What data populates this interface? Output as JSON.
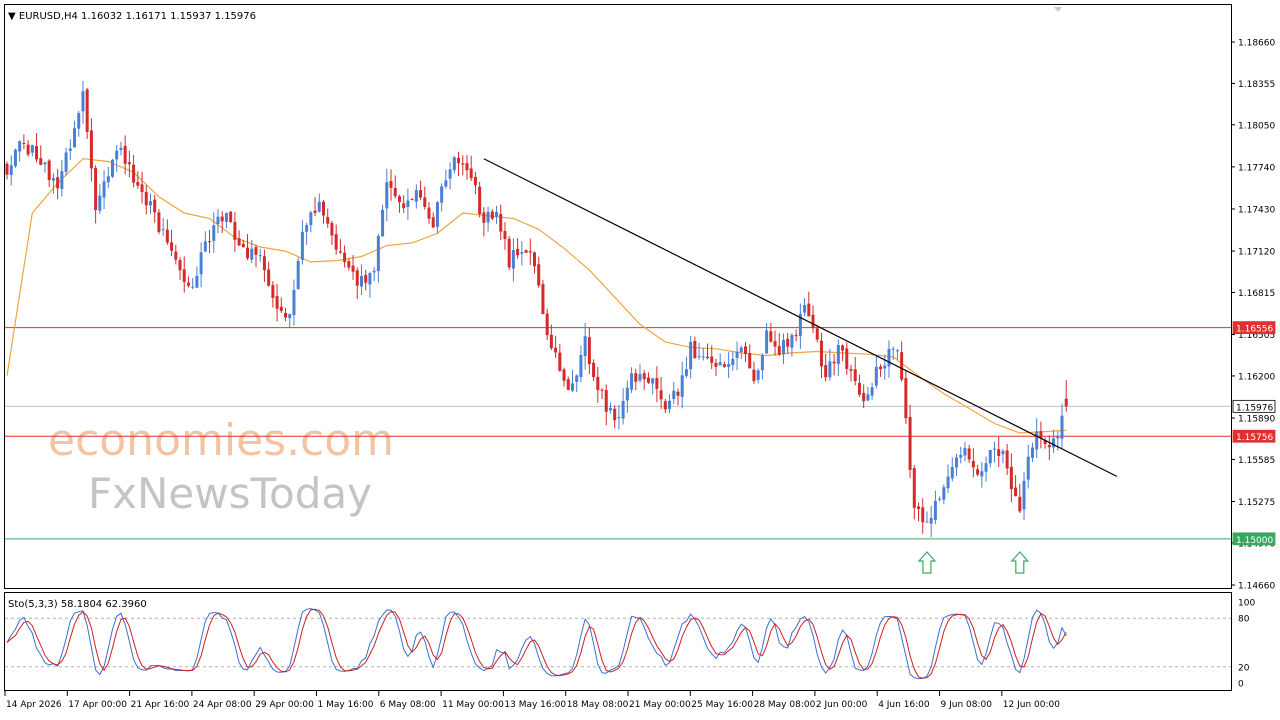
{
  "header": {
    "info": "▼ EURUSD,H4  1.16032 1.16171 1.15937 1.15976"
  },
  "watermark": {
    "line1": "economies.com",
    "line2": "FxNewsToday"
  },
  "indicator": {
    "label": "Sto(5,3,3) 58.1804 62.3960",
    "levels": [
      100,
      80,
      20,
      0
    ],
    "scale_labels": [
      "100",
      "80",
      "20",
      "0"
    ]
  },
  "colors": {
    "bull": "#4a7fd6",
    "bear": "#d42a2a",
    "ma": "#f0a640",
    "resistance": "#e03030",
    "support": "#3aa860",
    "current_price_line": "#c0c0c0",
    "trendline": "#000000",
    "stoch_main": "#3a70d0",
    "stoch_signal": "#d02020",
    "arrow": "#3aa860",
    "watermark_orange": "#f3c4a2",
    "watermark_gray": "#c4c4c4"
  },
  "chart_data": {
    "type": "candlestick",
    "symbol": "EURUSD",
    "timeframe": "H4",
    "ohlc_header": {
      "open": 1.16032,
      "high": 1.16171,
      "low": 1.15937,
      "close": 1.15976
    },
    "ylim": [
      1.1466,
      1.1886
    ],
    "y_ticks": [
      1.1866,
      1.18355,
      1.1805,
      1.1774,
      1.1743,
      1.1712,
      1.16815,
      1.16505,
      1.162,
      1.1589,
      1.15585,
      1.15275,
      1.1497,
      1.1466
    ],
    "x_tick_labels": [
      "14 Apr 2026",
      "17 Apr 00:00",
      "21 Apr 16:00",
      "24 Apr 08:00",
      "29 Apr 00:00",
      "1 May 16:00",
      "6 May 08:00",
      "11 May 00:00",
      "13 May 16:00",
      "18 May 08:00",
      "21 May 00:00",
      "25 May 16:00",
      "28 May 08:00",
      "2 Jun 00:00",
      "4 Jun 16:00",
      "9 Jun 08:00",
      "12 Jun 00:00"
    ],
    "anchors": [
      [
        0,
        1.1765
      ],
      [
        3,
        1.1795
      ],
      [
        8,
        1.1778
      ],
      [
        12,
        1.1758
      ],
      [
        16,
        1.1802
      ],
      [
        18,
        1.1832
      ],
      [
        21,
        1.1738
      ],
      [
        26,
        1.1788
      ],
      [
        31,
        1.1762
      ],
      [
        34,
        1.1744
      ],
      [
        38,
        1.1718
      ],
      [
        43,
        1.1682
      ],
      [
        47,
        1.1714
      ],
      [
        52,
        1.1744
      ],
      [
        55,
        1.1712
      ],
      [
        60,
        1.1708
      ],
      [
        64,
        1.1674
      ],
      [
        67,
        1.1665
      ],
      [
        70,
        1.1726
      ],
      [
        74,
        1.1746
      ],
      [
        79,
        1.1708
      ],
      [
        83,
        1.1686
      ],
      [
        87,
        1.1698
      ],
      [
        90,
        1.1762
      ],
      [
        93,
        1.1748
      ],
      [
        97,
        1.1752
      ],
      [
        101,
        1.1732
      ],
      [
        104,
        1.1768
      ],
      [
        107,
        1.1782
      ],
      [
        110,
        1.1768
      ],
      [
        113,
        1.1732
      ],
      [
        116,
        1.1744
      ],
      [
        119,
        1.1704
      ],
      [
        122,
        1.1714
      ],
      [
        125,
        1.1704
      ],
      [
        128,
        1.1652
      ],
      [
        131,
        1.1622
      ],
      [
        134,
        1.161
      ],
      [
        137,
        1.1645
      ],
      [
        140,
        1.1612
      ],
      [
        143,
        1.1592
      ],
      [
        145,
        1.1588
      ],
      [
        148,
        1.1618
      ],
      [
        151,
        1.1622
      ],
      [
        154,
        1.1615
      ],
      [
        156,
        1.1598
      ],
      [
        159,
        1.1608
      ],
      [
        162,
        1.164
      ],
      [
        165,
        1.1635
      ],
      [
        168,
        1.1622
      ],
      [
        171,
        1.1632
      ],
      [
        174,
        1.164
      ],
      [
        177,
        1.1618
      ],
      [
        180,
        1.1652
      ],
      [
        183,
        1.1638
      ],
      [
        186,
        1.1648
      ],
      [
        189,
        1.1668
      ],
      [
        191,
        1.1658
      ],
      [
        194,
        1.1618
      ],
      [
        197,
        1.164
      ],
      [
        200,
        1.1625
      ],
      [
        203,
        1.1605
      ],
      [
        206,
        1.1622
      ],
      [
        209,
        1.1638
      ],
      [
        211,
        1.164
      ],
      [
        213,
        1.1585
      ],
      [
        215,
        1.1525
      ],
      [
        218,
        1.1512
      ],
      [
        221,
        1.153
      ],
      [
        224,
        1.1552
      ],
      [
        227,
        1.1565
      ],
      [
        230,
        1.1545
      ],
      [
        233,
        1.156
      ],
      [
        236,
        1.1568
      ],
      [
        238,
        1.1535
      ],
      [
        240,
        1.152
      ],
      [
        242,
        1.156
      ],
      [
        244,
        1.158
      ],
      [
        246,
        1.157
      ],
      [
        248,
        1.1575
      ],
      [
        250,
        1.1586
      ],
      [
        251,
        1.1597
      ]
    ],
    "moving_average": {
      "color": "#f0a640",
      "points": [
        [
          0,
          1.162
        ],
        [
          6,
          1.174
        ],
        [
          12,
          1.1762
        ],
        [
          18,
          1.178
        ],
        [
          24,
          1.1778
        ],
        [
          30,
          1.177
        ],
        [
          36,
          1.1752
        ],
        [
          42,
          1.174
        ],
        [
          48,
          1.1736
        ],
        [
          54,
          1.1722
        ],
        [
          60,
          1.1715
        ],
        [
          66,
          1.1712
        ],
        [
          72,
          1.1704
        ],
        [
          78,
          1.1705
        ],
        [
          84,
          1.1708
        ],
        [
          90,
          1.1716
        ],
        [
          96,
          1.1718
        ],
        [
          102,
          1.1725
        ],
        [
          108,
          1.174
        ],
        [
          114,
          1.1738
        ],
        [
          120,
          1.1736
        ],
        [
          126,
          1.1728
        ],
        [
          132,
          1.1714
        ],
        [
          138,
          1.1698
        ],
        [
          144,
          1.1678
        ],
        [
          150,
          1.1658
        ],
        [
          156,
          1.1645
        ],
        [
          162,
          1.1641
        ],
        [
          168,
          1.164
        ],
        [
          174,
          1.1637
        ],
        [
          180,
          1.1635
        ],
        [
          186,
          1.1637
        ],
        [
          192,
          1.1638
        ],
        [
          198,
          1.1637
        ],
        [
          204,
          1.1636
        ],
        [
          210,
          1.1634
        ],
        [
          216,
          1.162
        ],
        [
          222,
          1.1607
        ],
        [
          228,
          1.1596
        ],
        [
          234,
          1.1585
        ],
        [
          240,
          1.1578
        ],
        [
          246,
          1.1579
        ],
        [
          251,
          1.158
        ]
      ]
    },
    "levels": [
      {
        "name": "resistance",
        "price": 1.16556,
        "label": "1.16556",
        "color": "#e03030"
      },
      {
        "name": "current",
        "price": 1.15976,
        "label": "1.15976",
        "color": "#c0c0c0"
      },
      {
        "name": "support-1",
        "price": 1.15756,
        "label": "1.15756",
        "color": "#e03030"
      },
      {
        "name": "support-2",
        "price": 1.15,
        "label": "1.15000",
        "color": "#3aa860"
      }
    ],
    "trendline": {
      "from": [
        113,
        1.178
      ],
      "to": [
        263,
        1.1546
      ]
    },
    "arrows": [
      {
        "bar": 218,
        "direction": "up"
      },
      {
        "bar": 240,
        "direction": "up"
      }
    ],
    "stochastic": {
      "k": 5,
      "d": 3,
      "slowing": 3,
      "main": 58.1804,
      "signal": 62.396
    }
  }
}
